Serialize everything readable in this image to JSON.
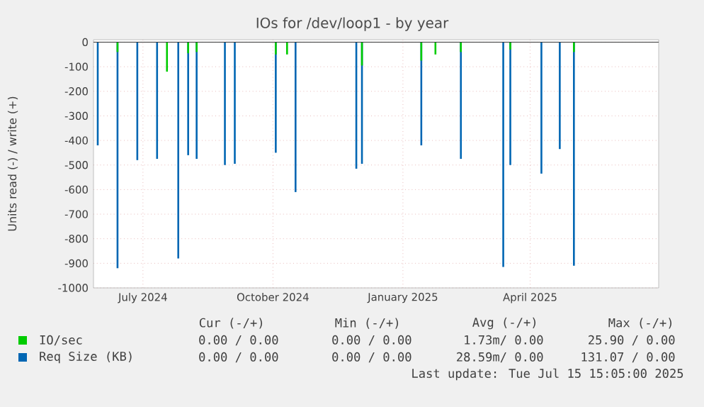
{
  "chart_data": {
    "type": "bar",
    "title": "IOs for /dev/loop1 - by year",
    "ylabel": "Units read (-) / write (+)",
    "xlim": [
      "2024-06-10",
      "2025-07-15"
    ],
    "xticks": [
      {
        "value": "2024-07-15",
        "label": "July 2024"
      },
      {
        "value": "2024-10-15",
        "label": "October 2024"
      },
      {
        "value": "2025-01-15",
        "label": "January 2025"
      },
      {
        "value": "2025-04-15",
        "label": "April 2025"
      }
    ],
    "ylim": [
      -1000,
      10
    ],
    "yticks": [
      -1000,
      -900,
      -800,
      -700,
      -600,
      -500,
      -400,
      -300,
      -200,
      -100,
      0
    ],
    "grid": true,
    "legend": "bottom",
    "series": [
      {
        "name": "Req Size (KB)",
        "color": "#0066b3",
        "x": [
          "2024-06-13",
          "2024-06-27",
          "2024-07-11",
          "2024-07-25",
          "2024-08-09",
          "2024-08-16",
          "2024-08-22",
          "2024-09-11",
          "2024-09-18",
          "2024-10-17",
          "2024-10-31",
          "2024-12-13",
          "2024-12-17",
          "2025-01-28",
          "2025-02-25",
          "2025-03-27",
          "2025-04-01",
          "2025-04-23",
          "2025-05-06",
          "2025-05-16"
        ],
        "values": [
          -420,
          -920,
          -480,
          -475,
          -880,
          -460,
          -475,
          -500,
          -495,
          -450,
          -610,
          -515,
          -495,
          -420,
          -475,
          -915,
          -500,
          -535,
          -435,
          -910
        ]
      },
      {
        "name": "IO/sec",
        "color": "#00cc00",
        "x": [
          "2024-06-27",
          "2024-08-01",
          "2024-08-16",
          "2024-08-22",
          "2024-10-17",
          "2024-10-25",
          "2024-12-17",
          "2025-01-28",
          "2025-02-07",
          "2025-02-25",
          "2025-04-01",
          "2025-05-16"
        ],
        "values": [
          -40,
          -120,
          -45,
          -40,
          -50,
          -50,
          -95,
          -75,
          -50,
          -40,
          -30,
          -40
        ]
      }
    ],
    "annotations": [
      "Cur (-/+)",
      "Min (-/+)",
      "Avg (-/+)",
      "Max (-/+)",
      "0.00 / 0.00",
      "0.00 / 0.00",
      "1.73m/ 0.00",
      "25.90 / 0.00",
      "0.00 / 0.00",
      "0.00 / 0.00",
      "28.59m/ 0.00",
      "131.07 / 0.00",
      "Last update: Tue Jul 15 15:05:00 2025"
    ]
  }
}
